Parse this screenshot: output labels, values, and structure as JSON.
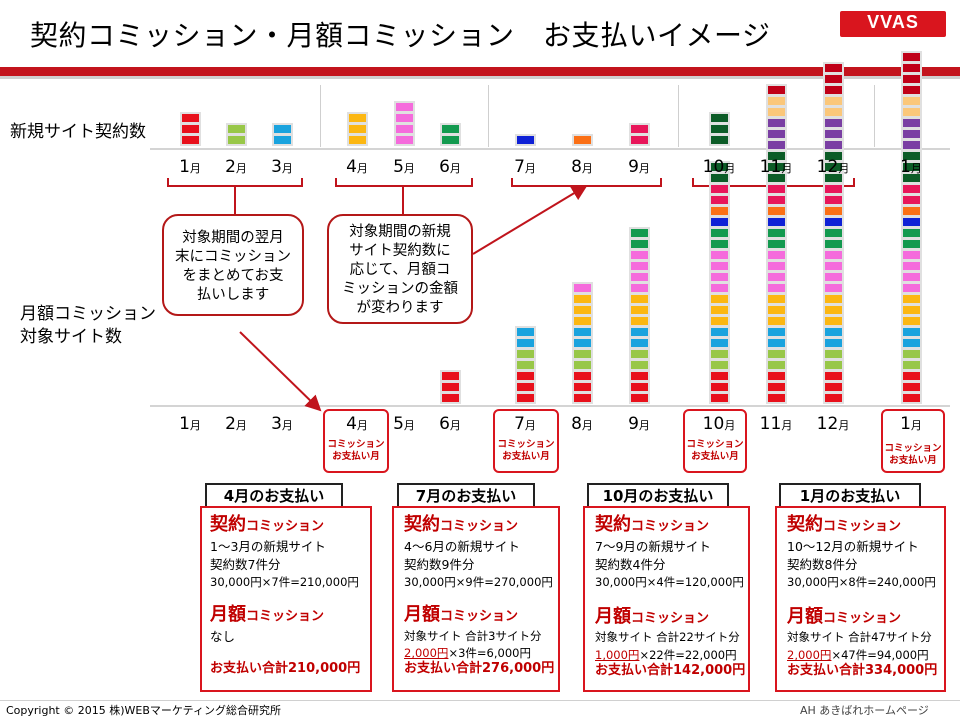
{
  "header": {
    "title": "契約コミッション・月額コミッション　お支払いイメージ",
    "logo": "VVAS",
    "colors": {
      "accent": "#d9151e",
      "rule": "#c3141d"
    }
  },
  "labels": {
    "new_contracts": "新規サイト契約数",
    "monthly_line1": "月額コミッション",
    "monthly_line2": "対象サイト数"
  },
  "month_suffix": "月",
  "months_top": [
    "1",
    "2",
    "3",
    "4",
    "5",
    "6",
    "7",
    "8",
    "9",
    "10",
    "11",
    "12",
    "1"
  ],
  "months_bottom": [
    "1",
    "2",
    "3",
    "4",
    "5",
    "6",
    "7",
    "8",
    "9",
    "10",
    "11",
    "12",
    "1"
  ],
  "payment_label": {
    "line1": "コミッション",
    "line2": "お支払い月"
  },
  "callouts": {
    "left": [
      "対象期間の翌月",
      "末にコミッション",
      "をまとめてお支",
      "払いします"
    ],
    "right": [
      "対象期間の新規",
      "サイト契約数に",
      "応じて、月額コ",
      "ミッションの金額",
      "が変わります"
    ]
  },
  "chart_data": {
    "type": "stacked-block",
    "categories": [
      "1月",
      "2月",
      "3月",
      "4月",
      "5月",
      "6月",
      "7月",
      "8月",
      "9月",
      "10月",
      "11月",
      "12月",
      "1月"
    ],
    "new_contracts": [
      3,
      2,
      2,
      3,
      4,
      2,
      1,
      1,
      2,
      3,
      3,
      2,
      4
    ],
    "monthly_target_sites": [
      0,
      0,
      0,
      0,
      0,
      3,
      7,
      11,
      16,
      22,
      29,
      31,
      35
    ],
    "block_colors": [
      "#e8111c",
      "#98c748",
      "#1aa3de",
      "#fcb712",
      "#f56bdc",
      "#139a4f",
      "#0f21d6",
      "#fb7016",
      "#e8165a",
      "#0c5c27",
      "#7a3fa3",
      "#fbc77a",
      "#c00018"
    ]
  },
  "cards": [
    {
      "tab": "4月のお支払い",
      "contract_head": "契約",
      "contract_head_small": "コミッション",
      "contract_lines": [
        "1～3月の新規サイト",
        "契約数7件分",
        "30,000円×7件=210,000円"
      ],
      "monthly_head": "月額",
      "monthly_head_small": "コミッション",
      "monthly_lines": [
        "なし",
        ""
      ],
      "total": "お支払い合計210,000円"
    },
    {
      "tab": "7月のお支払い",
      "contract_head": "契約",
      "contract_head_small": "コミッション",
      "contract_lines": [
        "4～6月の新規サイト",
        "契約数9件分",
        "30,000円×9件=270,000円"
      ],
      "monthly_head": "月額",
      "monthly_head_small": "コミッション",
      "monthly_lines": [
        "対象サイト 合計3サイト分",
        "2,000円×3件=6,000円"
      ],
      "total": "お支払い合計276,000円"
    },
    {
      "tab": "10月のお支払い",
      "contract_head": "契約",
      "contract_head_small": "コミッション",
      "contract_lines": [
        "7～9月の新規サイト",
        "契約数4件分",
        "30,000円×4件=120,000円"
      ],
      "monthly_head": "月額",
      "monthly_head_small": "コミッション",
      "monthly_lines": [
        "対象サイト 合計22サイト分",
        "1,000円×22件=22,000円"
      ],
      "total": "お支払い合計142,000円"
    },
    {
      "tab": "1月のお支払い",
      "contract_head": "契約",
      "contract_head_small": "コミッション",
      "contract_lines": [
        "10～12月の新規サイト",
        "契約数8件分",
        "30,000円×8件=240,000円"
      ],
      "monthly_head": "月額",
      "monthly_head_small": "コミッション",
      "monthly_lines": [
        "対象サイト 合計47サイト分",
        "2,000円×47件=94,000円"
      ],
      "total": "お支払い合計334,000円"
    }
  ],
  "footer": {
    "copyright": "Copyright © 2015 株)WEBマーケティング総合研究所",
    "logo_text": "AH あきばれホームページ"
  }
}
